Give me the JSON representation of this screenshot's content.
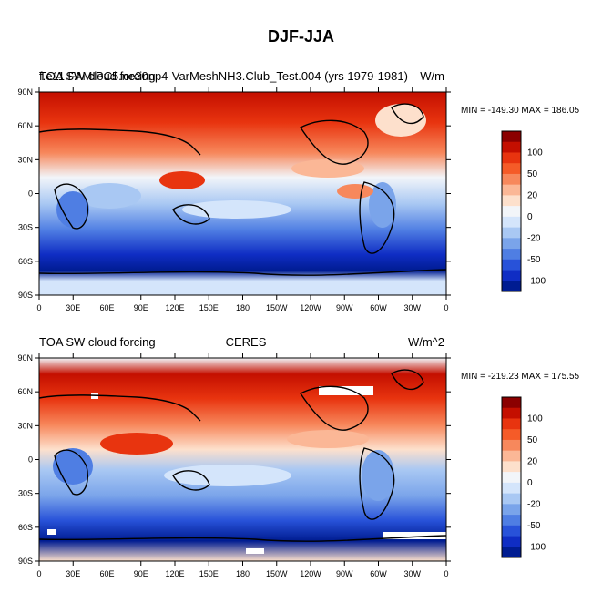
{
  "figure": {
    "title": "DJF-JJA"
  },
  "panels": [
    {
      "id": "model",
      "left_text": "TOA SW cloud forcing",
      "overlay_text": "f.e11.FAMIPC5.ne30np4-VarMeshNH3.Club_Test.004 (yrs 1979-1981)",
      "center_text": "",
      "units": "W/m",
      "min_max": "MIN = -149.30  MAX = 186.05"
    },
    {
      "id": "obs",
      "left_text": "TOA SW cloud forcing",
      "overlay_text": "",
      "center_text": "CERES",
      "units": "W/m^2",
      "min_max": "MIN = -219.23  MAX = 175.55"
    }
  ],
  "lat_labels": [
    "90N",
    "60N",
    "30N",
    "0",
    "30S",
    "60S",
    "90S"
  ],
  "lon_labels": [
    "0",
    "30E",
    "60E",
    "90E",
    "120E",
    "150E",
    "180",
    "150W",
    "120W",
    "90W",
    "60W",
    "30W",
    "0"
  ],
  "colorbar": {
    "labels": [
      "100",
      "50",
      "20",
      "0",
      "-20",
      "-50",
      "-100"
    ],
    "colors": [
      "#8b0000",
      "#c40f00",
      "#e8340f",
      "#f55b28",
      "#f7885c",
      "#fbb796",
      "#fde0cc",
      "#f2f5f9",
      "#d4e5fb",
      "#a9c8f3",
      "#7aa4ea",
      "#4f7ee3",
      "#2852d9",
      "#0f2dc4",
      "#001c91"
    ]
  }
}
